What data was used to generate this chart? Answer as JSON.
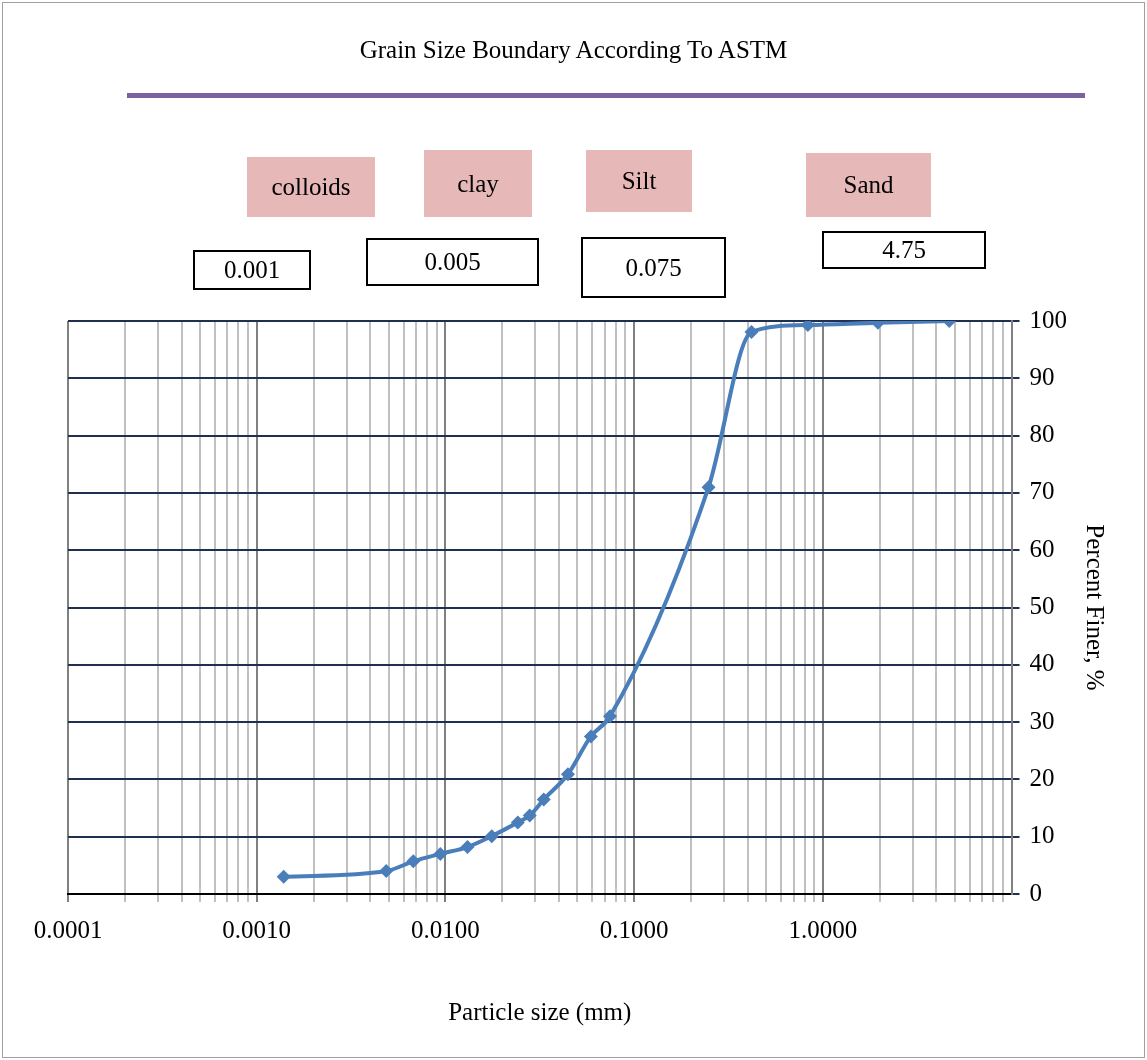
{
  "chart_data": {
    "type": "line",
    "title": "Grain Size Boundary According To ASTM",
    "xlabel": "Particle size (mm)",
    "ylabel": "Percent Finer, %",
    "annotations": [
      "colloids",
      "clay",
      "Silt",
      "Sand",
      "0.001",
      "0.005",
      "0.075",
      "4.75"
    ],
    "x": [
      0.00139,
      0.00486,
      0.00676,
      0.0094,
      0.0131,
      0.0176,
      0.0242,
      0.028,
      0.0332,
      0.0446,
      0.059,
      0.0745,
      0.248,
      0.419,
      0.833,
      1.96,
      4.68
    ],
    "series": [
      {
        "color": "#4a7ebb",
        "values": [
          3,
          4,
          5.7,
          7,
          8.2,
          10.1,
          12.5,
          13.7,
          16.5,
          20.9,
          27.5,
          31,
          71,
          98.1,
          99.3,
          99.7,
          100
        ]
      }
    ],
    "log": "x",
    "xlim": [
      0.0001,
      10
    ],
    "xticks": [
      0.0001,
      {
        "value": 0.0002,
        "label": null
      },
      {
        "value": 0.0003,
        "label": null
      },
      {
        "value": 0.0004,
        "label": null
      },
      {
        "value": 0.0005,
        "label": null
      },
      {
        "value": 0.0006,
        "label": null
      },
      {
        "value": 0.0007,
        "label": null
      },
      {
        "value": 0.0008,
        "label": null
      },
      {
        "value": 0.0009,
        "label": null
      },
      {
        "value": 0.001,
        "label": "0.0010"
      },
      {
        "value": 0.002,
        "label": null
      },
      {
        "value": 0.003,
        "label": null
      },
      {
        "value": 0.004,
        "label": null
      },
      {
        "value": 0.005,
        "label": null
      },
      {
        "value": 0.006,
        "label": null
      },
      {
        "value": 0.007,
        "label": null
      },
      {
        "value": 0.008,
        "label": null
      },
      {
        "value": 0.009,
        "label": null
      },
      {
        "value": 0.01,
        "label": "0.0100"
      },
      {
        "value": 0.02,
        "label": null
      },
      {
        "value": 0.03,
        "label": null
      },
      {
        "value": 0.04,
        "label": null
      },
      {
        "value": 0.05,
        "label": null
      },
      {
        "value": 0.06,
        "label": null
      },
      {
        "value": 0.07,
        "label": null
      },
      {
        "value": 0.08,
        "label": null
      },
      {
        "value": 0.09,
        "label": null
      },
      {
        "value": 0.1,
        "label": "0.1000"
      },
      {
        "value": 0.2,
        "label": null
      },
      {
        "value": 0.3,
        "label": null
      },
      {
        "value": 0.4,
        "label": null
      },
      {
        "value": 0.5,
        "label": null
      },
      {
        "value": 0.6,
        "label": null
      },
      {
        "value": 0.7,
        "label": null
      },
      {
        "value": 0.8,
        "label": null
      },
      {
        "value": 0.9,
        "label": null
      },
      {
        "value": 1,
        "label": "1.0000"
      },
      {
        "value": 2,
        "label": null
      },
      {
        "value": 3,
        "label": null
      },
      {
        "value": 4,
        "label": null
      },
      {
        "value": 5,
        "label": null
      },
      {
        "value": 6,
        "label": null
      },
      {
        "value": 7,
        "label": null
      },
      {
        "value": 8,
        "label": null
      },
      {
        "value": 9,
        "label": null
      }
    ],
    "ylim": [
      0,
      100
    ],
    "yticks": [
      0,
      10,
      20,
      30,
      40,
      50,
      60,
      70,
      80,
      90,
      100
    ],
    "grid": true,
    "marker": "diamond",
    "line_style": "solid"
  }
}
